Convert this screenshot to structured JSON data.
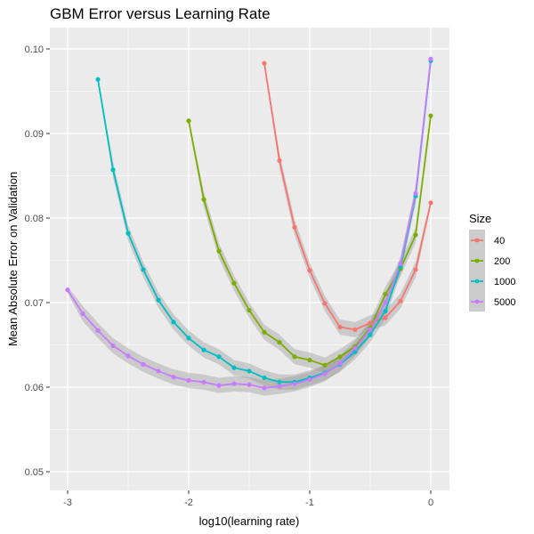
{
  "chart_data": {
    "type": "line",
    "title": "GBM Error versus Learning Rate",
    "xlabel": "log10(learning rate)",
    "ylabel": "Mean Absolute Error on Validation",
    "xlim": [
      -3.15,
      0.15
    ],
    "ylim": [
      0.0478,
      0.1025
    ],
    "x_ticks": [
      -3,
      -2,
      -1,
      0
    ],
    "x_tick_labels": [
      "-3",
      "-2",
      "-1",
      "0"
    ],
    "y_ticks": [
      0.05,
      0.06,
      0.07,
      0.08,
      0.09,
      0.1
    ],
    "y_tick_labels": [
      "0.05",
      "0.06",
      "0.07",
      "0.08",
      "0.09",
      "0.10"
    ],
    "grid": true,
    "smooth_band": true,
    "legend": {
      "title": "Size",
      "position": "right",
      "entries": [
        "40",
        "200",
        "1000",
        "5000"
      ]
    },
    "series": [
      {
        "name": "40",
        "color": "#F8766D",
        "x": [
          -1.375,
          -1.25,
          -1.125,
          -1.0,
          -0.875,
          -0.75,
          -0.625,
          -0.5,
          -0.375,
          -0.25,
          -0.125,
          0.0
        ],
        "y": [
          0.0983,
          0.0868,
          0.0789,
          0.0738,
          0.0699,
          0.0671,
          0.0668,
          0.0676,
          0.0682,
          0.0702,
          0.0739,
          0.0818
        ]
      },
      {
        "name": "200",
        "color": "#7CAE00",
        "x": [
          -2.0,
          -1.875,
          -1.75,
          -1.625,
          -1.5,
          -1.375,
          -1.25,
          -1.125,
          -1.0,
          -0.875,
          -0.75,
          -0.625,
          -0.5,
          -0.375,
          -0.25,
          -0.125,
          0.0
        ],
        "y": [
          0.0915,
          0.0822,
          0.0761,
          0.0723,
          0.0691,
          0.0665,
          0.0653,
          0.0636,
          0.0632,
          0.0626,
          0.0636,
          0.0648,
          0.067,
          0.071,
          0.074,
          0.078,
          0.0921
        ]
      },
      {
        "name": "1000",
        "color": "#00BFC4",
        "x": [
          -2.75,
          -2.625,
          -2.5,
          -2.375,
          -2.25,
          -2.125,
          -2.0,
          -1.875,
          -1.75,
          -1.625,
          -1.5,
          -1.375,
          -1.25,
          -1.125,
          -1.0,
          -0.875,
          -0.75,
          -0.625,
          -0.5,
          -0.375,
          -0.25,
          -0.125,
          0.0
        ],
        "y": [
          0.0964,
          0.0857,
          0.0782,
          0.0739,
          0.0703,
          0.0677,
          0.0658,
          0.0644,
          0.0636,
          0.0623,
          0.0619,
          0.0611,
          0.0606,
          0.0606,
          0.0611,
          0.0617,
          0.0627,
          0.0642,
          0.0662,
          0.069,
          0.0742,
          0.0826,
          0.0986
        ]
      },
      {
        "name": "5000",
        "color": "#C77CFF",
        "x": [
          -3.0,
          -2.875,
          -2.75,
          -2.625,
          -2.5,
          -2.375,
          -2.25,
          -2.125,
          -2.0,
          -1.875,
          -1.75,
          -1.625,
          -1.5,
          -1.375,
          -1.25,
          -1.125,
          -1.0,
          -0.875,
          -0.75,
          -0.625,
          -0.5,
          -0.375,
          -0.25,
          -0.125,
          0.0
        ],
        "y": [
          0.0715,
          0.0687,
          0.0667,
          0.0649,
          0.0637,
          0.0627,
          0.0619,
          0.0612,
          0.0608,
          0.0606,
          0.0602,
          0.0604,
          0.0603,
          0.0599,
          0.0601,
          0.0604,
          0.0609,
          0.0616,
          0.0628,
          0.0646,
          0.0668,
          0.07,
          0.0746,
          0.0829,
          0.0988
        ]
      }
    ]
  }
}
